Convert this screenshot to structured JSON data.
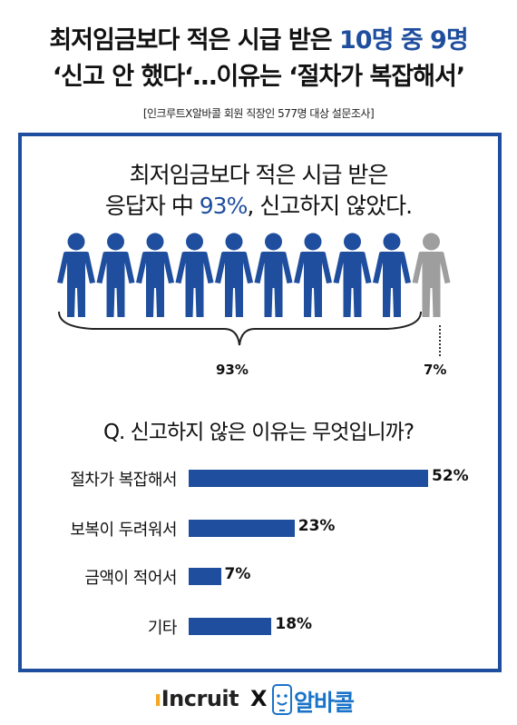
{
  "headline": {
    "line1_prefix": "최저임금보다 적은 시급 받은 ",
    "line1_highlight": "10명 중 9명",
    "line2": "‘신고 안 했다‘…이유는 ‘절차가 복잡해서’"
  },
  "subtitle": "[인크루트X알바콜 회원 직장인 577명 대상 설문조사]",
  "stat": {
    "line1": "최저임금보다 적은 시급 받은",
    "line2_prefix": "응답자 中 ",
    "line2_highlight": "93%",
    "line2_suffix": ", 신고하지 않았다."
  },
  "people": {
    "total": 10,
    "highlighted": 9,
    "color_main": "#1f4e9e",
    "color_other": "#9e9e9e",
    "label_main": "93%",
    "label_other": "7%"
  },
  "question": "Q. 신고하지 않은 이유는 무엇입니까?",
  "chart_data": {
    "type": "bar",
    "orientation": "horizontal",
    "categories": [
      "절차가 복잡해서",
      "보복이 두려워서",
      "금액이 적어서",
      "기타"
    ],
    "values": [
      52,
      23,
      7,
      18
    ],
    "value_labels": [
      "52%",
      "23%",
      "7%",
      "18%"
    ],
    "unit": "%",
    "xlim": [
      0,
      52
    ],
    "bar_color": "#1f4e9e"
  },
  "logos": {
    "incruit": "Incruit",
    "separator": "X",
    "albacall": "알바콜",
    "incruit_icon": "incruit-person-dot-icon",
    "albacall_icon": "phone-face-icon"
  },
  "colors": {
    "accent": "#1f4e9e",
    "albacall_blue": "#1a73c8",
    "incruit_orange": "#f5a623"
  }
}
